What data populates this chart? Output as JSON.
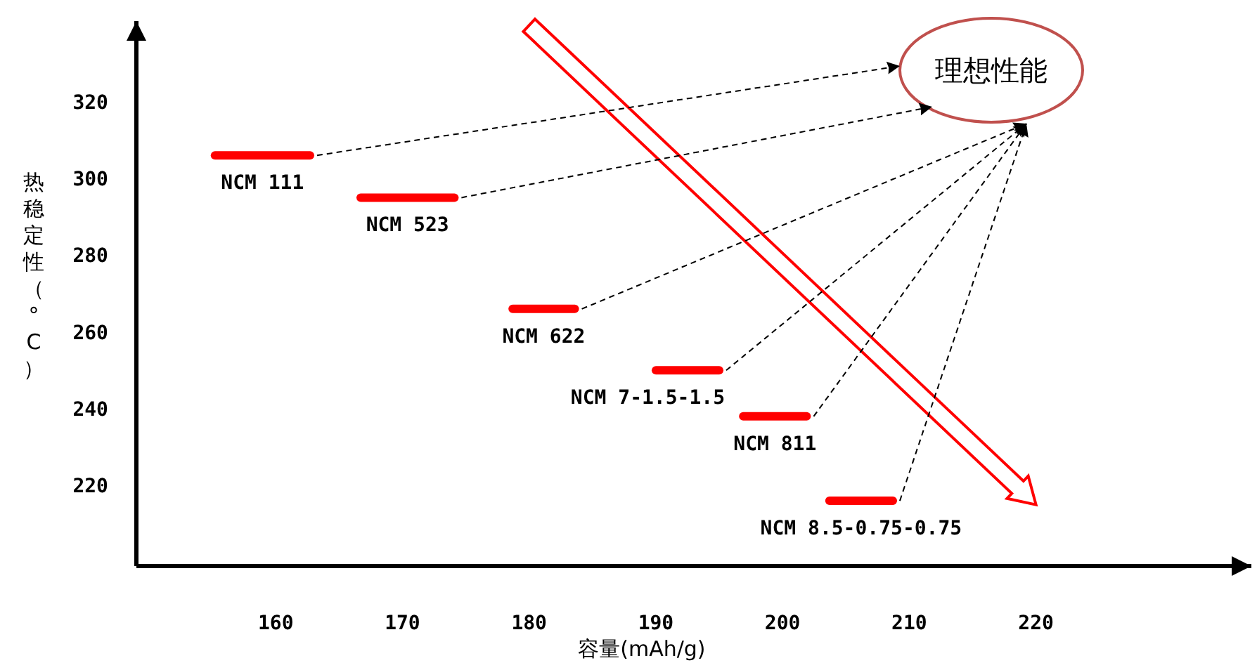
{
  "chart_data": {
    "type": "line",
    "xlabel": "容量(mAh/g)",
    "ylabel": "热稳定性（°C）",
    "xlim": [
      149,
      237
    ],
    "ylim": [
      199,
      341
    ],
    "xticks": [
      160,
      170,
      180,
      190,
      200,
      210,
      220
    ],
    "yticks": [
      220,
      240,
      260,
      280,
      300,
      320
    ],
    "line_style": "solid",
    "annotations": [
      "理想性能"
    ],
    "series": [
      {
        "name": "NCM 111",
        "color": "#ff0000",
        "x": [
          155.2,
          162.7
        ],
        "values": [
          306,
          306
        ]
      },
      {
        "name": "NCM 523",
        "color": "#ff0000",
        "x": [
          166.7,
          174.1
        ],
        "values": [
          295,
          295
        ]
      },
      {
        "name": "NCM 622",
        "color": "#ff0000",
        "x": [
          178.7,
          183.6
        ],
        "values": [
          266,
          266
        ]
      },
      {
        "name": "NCM 7-1.5-1.5",
        "color": "#ff0000",
        "x": [
          190,
          195
        ],
        "values": [
          250,
          250
        ]
      },
      {
        "name": "NCM 811",
        "color": "#ff0000",
        "x": [
          196.9,
          201.9
        ],
        "values": [
          238,
          238
        ]
      },
      {
        "name": "NCM 8.5-0.75-0.75",
        "color": "#ff0000",
        "x": [
          203.7,
          208.7
        ],
        "values": [
          216,
          216
        ]
      }
    ]
  }
}
